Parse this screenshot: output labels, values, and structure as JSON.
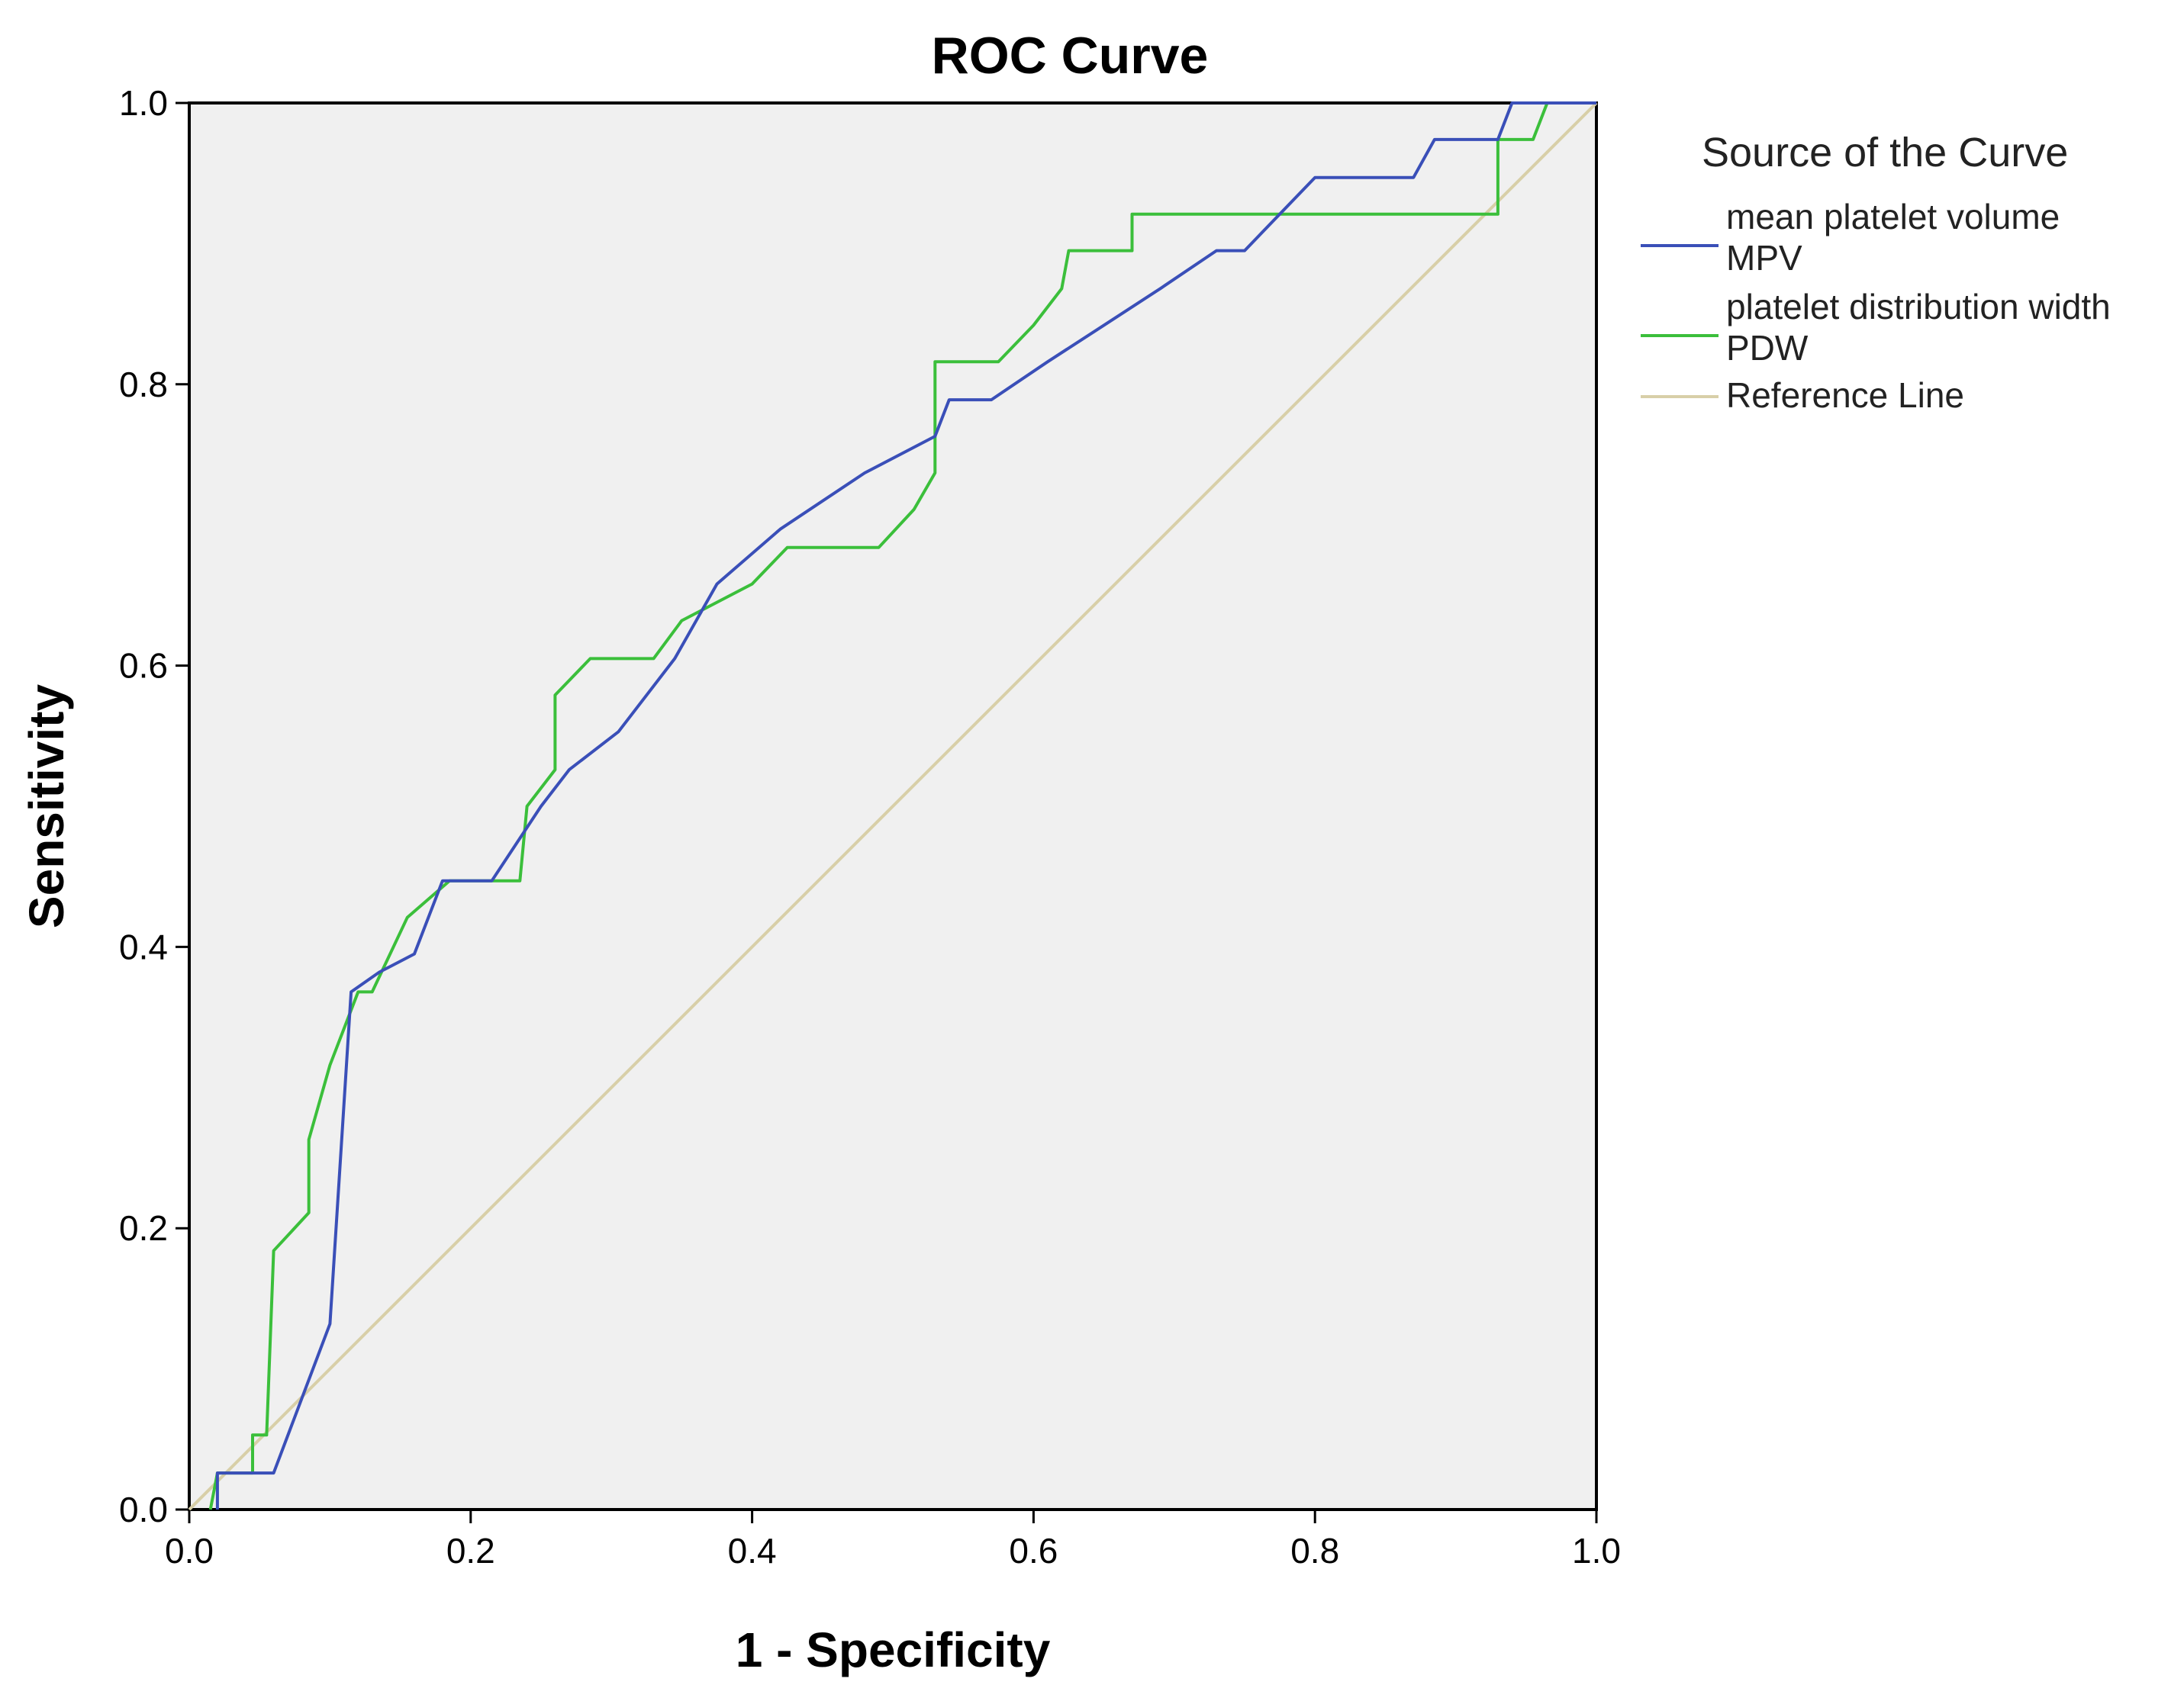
{
  "chart_data": {
    "type": "line",
    "title": "ROC Curve",
    "xlabel": "1 - Specificity",
    "ylabel": "Sensitivity",
    "xlim": [
      0,
      1
    ],
    "ylim": [
      0,
      1
    ],
    "xticks": [
      "0.0",
      "0.2",
      "0.4",
      "0.6",
      "0.8",
      "1.0"
    ],
    "yticks": [
      "0.0",
      "0.2",
      "0.4",
      "0.6",
      "0.8",
      "1.0"
    ],
    "grid": false,
    "legend_title": "Source of the Curve",
    "legend_position": "right",
    "series": [
      {
        "name": "mean  platelet volume",
        "name_line2": "MPV",
        "color": "#3a4fb8",
        "x": [
          0.02,
          0.02,
          0.06,
          0.08,
          0.1,
          0.115,
          0.135,
          0.16,
          0.18,
          0.215,
          0.25,
          0.27,
          0.305,
          0.345,
          0.375,
          0.42,
          0.48,
          0.53,
          0.54,
          0.57,
          0.61,
          0.65,
          0.69,
          0.73,
          0.75,
          0.8,
          0.87,
          0.885,
          0.93,
          0.94,
          1.0
        ],
        "y": [
          0.0,
          0.026,
          0.026,
          0.079,
          0.132,
          0.368,
          0.382,
          0.395,
          0.447,
          0.447,
          0.5,
          0.526,
          0.553,
          0.605,
          0.658,
          0.697,
          0.737,
          0.763,
          0.789,
          0.789,
          0.816,
          0.842,
          0.868,
          0.895,
          0.895,
          0.947,
          0.947,
          0.974,
          0.974,
          1.0,
          1.0
        ]
      },
      {
        "name": "platelet distribution width",
        "name_line2": "PDW",
        "color": "#3bbf3b",
        "x": [
          0.015,
          0.02,
          0.045,
          0.045,
          0.055,
          0.06,
          0.085,
          0.085,
          0.1,
          0.12,
          0.13,
          0.155,
          0.185,
          0.235,
          0.24,
          0.26,
          0.26,
          0.285,
          0.33,
          0.35,
          0.4,
          0.425,
          0.49,
          0.515,
          0.53,
          0.53,
          0.575,
          0.6,
          0.62,
          0.625,
          0.67,
          0.67,
          0.93,
          0.93,
          0.955,
          0.965,
          1.0
        ],
        "y": [
          0.0,
          0.026,
          0.026,
          0.053,
          0.053,
          0.184,
          0.211,
          0.263,
          0.316,
          0.368,
          0.368,
          0.421,
          0.447,
          0.447,
          0.5,
          0.526,
          0.579,
          0.605,
          0.605,
          0.632,
          0.658,
          0.684,
          0.684,
          0.711,
          0.737,
          0.816,
          0.816,
          0.842,
          0.868,
          0.895,
          0.895,
          0.921,
          0.921,
          0.974,
          0.974,
          1.0,
          1.0
        ]
      },
      {
        "name": "Reference Line",
        "color": "#d8cfa8",
        "x": [
          0,
          1
        ],
        "y": [
          0,
          1
        ]
      }
    ]
  }
}
